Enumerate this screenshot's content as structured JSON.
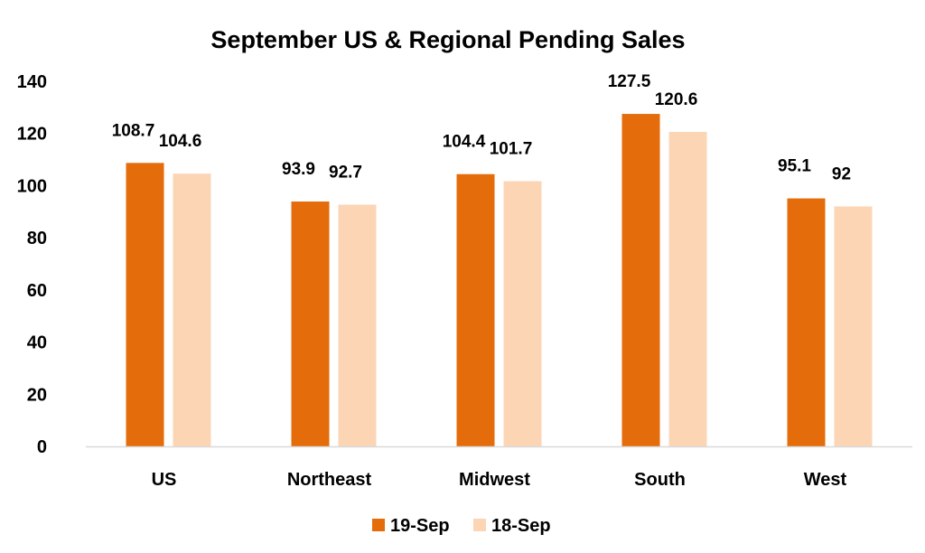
{
  "chart_data": {
    "type": "bar",
    "title": "September US & Regional Pending Sales",
    "categories": [
      "US",
      "Northeast",
      "Midwest",
      "South",
      "West"
    ],
    "series": [
      {
        "name": "19-Sep",
        "values": [
          108.7,
          93.9,
          104.4,
          127.5,
          95.1
        ],
        "color": "#E46C0A",
        "labels": [
          "108.7",
          "93.9",
          "104.4",
          "127.5",
          "95.1"
        ]
      },
      {
        "name": "18-Sep",
        "values": [
          104.6,
          92.7,
          101.7,
          120.6,
          92
        ],
        "color": "#FCD5B5",
        "labels": [
          "104.6",
          "92.7",
          "101.7",
          "120.6",
          "92"
        ]
      }
    ],
    "ylim": [
      0,
      140
    ],
    "yticks": [
      "0",
      "20",
      "40",
      "60",
      "80",
      "100",
      "120",
      "140"
    ],
    "grid": false,
    "legend_position": "bottom",
    "axis_color": "#D9D9D9"
  }
}
